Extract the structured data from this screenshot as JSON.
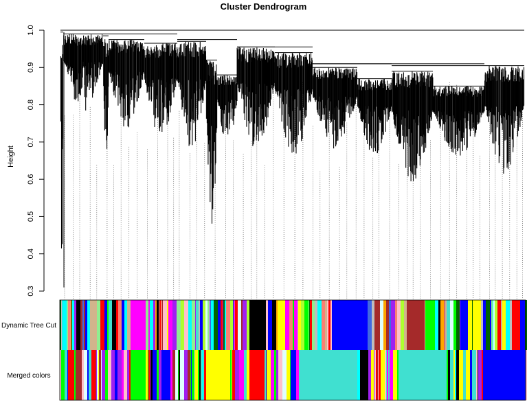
{
  "chart_data": {
    "type": "dendrogram",
    "title": "Cluster Dendrogram",
    "xlabel": "",
    "ylabel": "Height",
    "ylim": [
      0.3,
      1.0
    ],
    "yticks": [
      "0.3",
      "0.4",
      "0.5",
      "0.6",
      "0.7",
      "0.8",
      "0.9",
      "1.0"
    ],
    "merge_heights_observed": [
      0.31,
      0.47,
      0.59,
      0.61,
      0.905,
      0.91,
      0.99,
      1.0
    ],
    "color_rows": [
      {
        "label": "Dynamic Tree Cut",
        "module_colors": [
          "grey",
          "magenta",
          "black",
          "blue",
          "red",
          "brown",
          "green",
          "lightcyan",
          "yellow",
          "turquoise",
          "pink",
          "purple",
          "greenyellow",
          "tan",
          "salmon",
          "royalblue",
          "lightgreen",
          "orange",
          "darkgreen",
          "cyan"
        ]
      },
      {
        "label": "Merged colors",
        "module_colors": [
          "turquoise",
          "blue",
          "green",
          "yellow",
          "red",
          "black",
          "purple",
          "brown",
          "pink",
          "magenta",
          "lightcyan",
          "cyan"
        ]
      }
    ],
    "colors": {
      "turquoise": "#40e0d0",
      "blue": "#0000ff",
      "brown": "#a52a2a",
      "yellow": "#ffff00",
      "green": "#00ff00",
      "red": "#ff0000",
      "black": "#000000",
      "pink": "#ffc0cb",
      "magenta": "#ff00ff",
      "purple": "#a020f0",
      "greenyellow": "#adff2f",
      "tan": "#d2b48c",
      "salmon": "#fa8072",
      "cyan": "#00ffff",
      "lightcyan": "#e0ffff",
      "grey": "#bebebe",
      "royalblue": "#4169e1",
      "lightgreen": "#90ee90",
      "orange": "#ffa500",
      "darkgreen": "#006400",
      "darkred": "#8b0000",
      "darkgrey": "#a9a9a9",
      "lightyellow": "#ffffe0",
      "midnightblue": "#191970",
      "white": "#ffffff"
    },
    "grid": false,
    "legend": "none"
  }
}
